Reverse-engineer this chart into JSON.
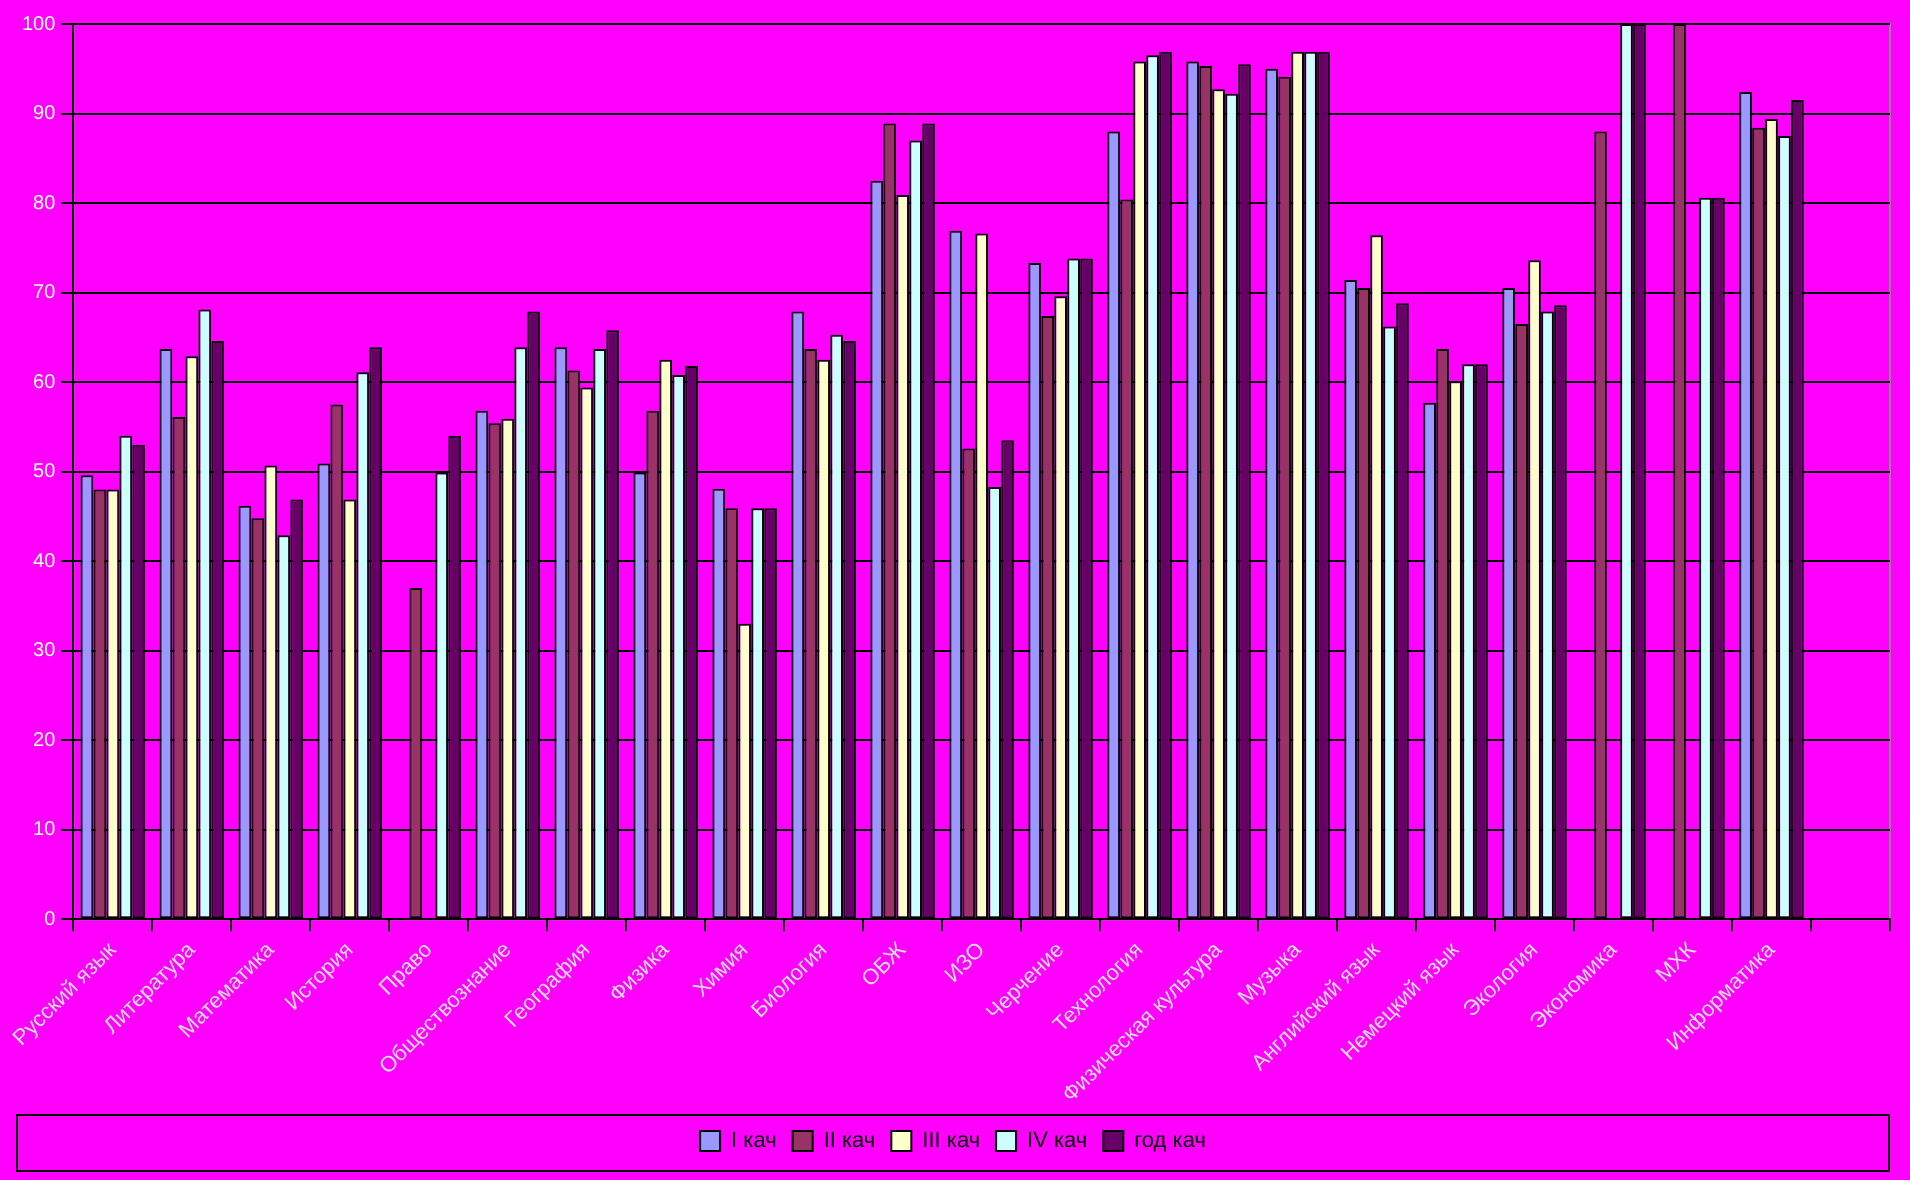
{
  "chart_data": {
    "type": "bar",
    "categories": [
      "Русский язык",
      "Литература",
      "Математика",
      "История",
      "Право",
      "Обществознание",
      "География",
      "Физика",
      "Химия",
      "Биология",
      "ОБЖ",
      "ИЗО",
      "Черчение",
      "Технология",
      "Физическая культура",
      "Музыка",
      "Английский язык",
      "Немецкий язык",
      "Экология",
      "Экономика",
      "МХК",
      "Информатика",
      null
    ],
    "series": [
      {
        "name": "I кач",
        "color": "#9999ff",
        "values": [
          49.6,
          63.7,
          46.2,
          50.9,
          null,
          56.8,
          63.9,
          49.9,
          48.1,
          67.9,
          82.5,
          76.9,
          73.3,
          88,
          95.8,
          95,
          71.4,
          57.7,
          70.5,
          null,
          null,
          92.4,
          null
        ]
      },
      {
        "name": "II кач",
        "color": "#993366",
        "values": [
          48,
          56.1,
          44.8,
          57.5,
          37,
          55.4,
          61.3,
          56.8,
          45.9,
          63.7,
          88.9,
          52.6,
          67.4,
          80.4,
          95.3,
          94.1,
          70.5,
          63.7,
          66.5,
          88,
          100,
          88.4,
          null
        ]
      },
      {
        "name": "III кач",
        "color": "#ffffcc",
        "values": [
          48,
          62.9,
          50.7,
          46.9,
          null,
          55.9,
          59.4,
          62.5,
          33,
          62.5,
          80.9,
          76.6,
          69.6,
          95.8,
          92.7,
          96.9,
          76.4,
          60.1,
          73.6,
          null,
          null,
          89.4,
          null
        ]
      },
      {
        "name": "IV кач",
        "color": "#ccffff",
        "values": [
          54,
          68.1,
          42.9,
          61.1,
          49.9,
          63.9,
          63.7,
          60.8,
          45.9,
          65.3,
          87,
          48.3,
          73.8,
          96.5,
          92.2,
          96.9,
          66.2,
          62,
          67.9,
          100,
          80.6,
          87.5,
          null
        ]
      },
      {
        "name": "год кач",
        "color": "#660066",
        "values": [
          53,
          64.6,
          46.9,
          63.9,
          54,
          67.9,
          65.8,
          61.8,
          45.9,
          64.6,
          88.9,
          53.5,
          73.8,
          96.9,
          95.5,
          96.9,
          68.8,
          62,
          68.6,
          100,
          80.6,
          91.5,
          null
        ]
      }
    ],
    "ylim": [
      0,
      100
    ],
    "yticks": [
      0,
      10,
      20,
      30,
      40,
      50,
      60,
      70,
      80,
      90,
      100
    ],
    "grid": "y",
    "legend": "bottom"
  }
}
